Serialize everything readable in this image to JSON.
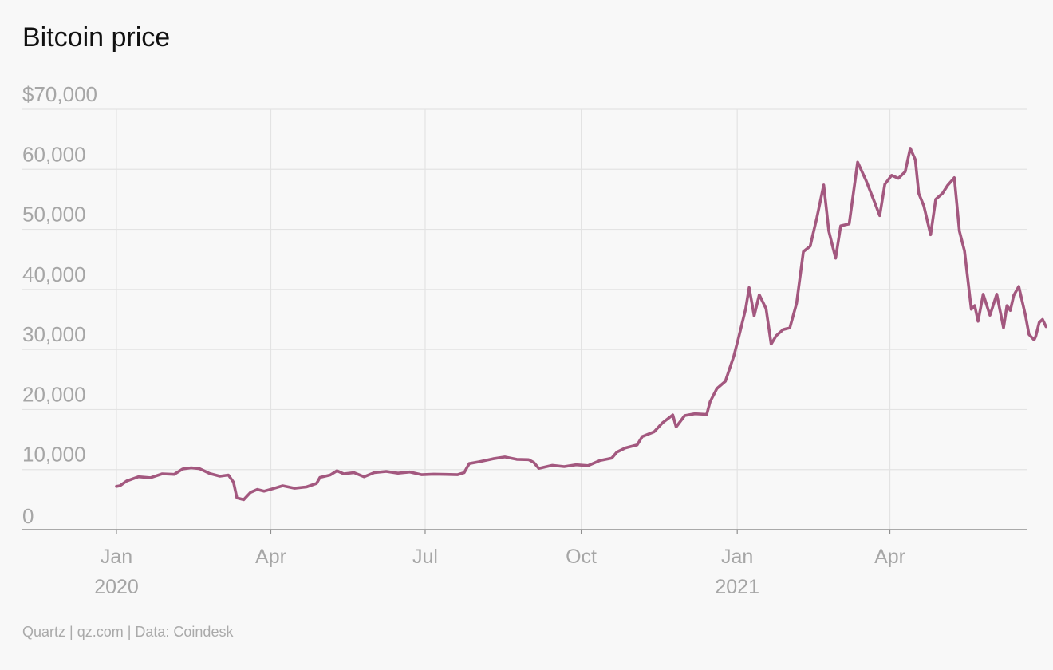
{
  "chart_data": {
    "type": "line",
    "title": "Bitcoin price",
    "source": "Quartz | qz.com | Data: Coindesk",
    "ylim": [
      0,
      70000
    ],
    "xlim": [
      "2019-11-01",
      "2021-06-15"
    ],
    "grid": true,
    "y_ticks": [
      {
        "value": 0,
        "label": "0"
      },
      {
        "value": 10000,
        "label": "10,000"
      },
      {
        "value": 20000,
        "label": "20,000"
      },
      {
        "value": 30000,
        "label": "30,000"
      },
      {
        "value": 40000,
        "label": "40,000"
      },
      {
        "value": 50000,
        "label": "50,000"
      },
      {
        "value": 60000,
        "label": "60,000"
      },
      {
        "value": 70000,
        "label": "$70,000"
      }
    ],
    "x_ticks": [
      {
        "date": "2020-01-01",
        "label": "Jan",
        "sublabel": "2020"
      },
      {
        "date": "2020-04-01",
        "label": "Apr",
        "sublabel": ""
      },
      {
        "date": "2020-07-01",
        "label": "Jul",
        "sublabel": ""
      },
      {
        "date": "2020-10-01",
        "label": "Oct",
        "sublabel": ""
      },
      {
        "date": "2021-01-01",
        "label": "Jan",
        "sublabel": "2021"
      },
      {
        "date": "2021-04-01",
        "label": "Apr",
        "sublabel": ""
      }
    ],
    "colors": {
      "line": "#a3587f",
      "grid": "#e3e3e3",
      "axis": "#8f8f8f",
      "ticks": "#a6a6a6"
    },
    "series": [
      {
        "points": [
          [
            "2020-01-01",
            7200
          ],
          [
            "2020-01-03",
            7300
          ],
          [
            "2020-01-07",
            8100
          ],
          [
            "2020-01-14",
            8800
          ],
          [
            "2020-01-21",
            8650
          ],
          [
            "2020-01-28",
            9300
          ],
          [
            "2020-02-04",
            9200
          ],
          [
            "2020-02-09",
            10100
          ],
          [
            "2020-02-14",
            10300
          ],
          [
            "2020-02-19",
            10150
          ],
          [
            "2020-02-25",
            9350
          ],
          [
            "2020-03-02",
            8900
          ],
          [
            "2020-03-07",
            9100
          ],
          [
            "2020-03-10",
            7900
          ],
          [
            "2020-03-12",
            5300
          ],
          [
            "2020-03-16",
            5000
          ],
          [
            "2020-03-20",
            6200
          ],
          [
            "2020-03-24",
            6700
          ],
          [
            "2020-03-28",
            6400
          ],
          [
            "2020-04-02",
            6800
          ],
          [
            "2020-04-08",
            7300
          ],
          [
            "2020-04-15",
            6900
          ],
          [
            "2020-04-22",
            7100
          ],
          [
            "2020-04-28",
            7700
          ],
          [
            "2020-04-30",
            8700
          ],
          [
            "2020-05-06",
            9100
          ],
          [
            "2020-05-10",
            9800
          ],
          [
            "2020-05-14",
            9300
          ],
          [
            "2020-05-20",
            9500
          ],
          [
            "2020-05-26",
            8800
          ],
          [
            "2020-06-01",
            9500
          ],
          [
            "2020-06-08",
            9700
          ],
          [
            "2020-06-15",
            9400
          ],
          [
            "2020-06-22",
            9600
          ],
          [
            "2020-06-29",
            9150
          ],
          [
            "2020-07-06",
            9250
          ],
          [
            "2020-07-13",
            9200
          ],
          [
            "2020-07-20",
            9150
          ],
          [
            "2020-07-24",
            9500
          ],
          [
            "2020-07-27",
            11000
          ],
          [
            "2020-08-02",
            11300
          ],
          [
            "2020-08-10",
            11800
          ],
          [
            "2020-08-17",
            12100
          ],
          [
            "2020-08-24",
            11700
          ],
          [
            "2020-08-31",
            11650
          ],
          [
            "2020-09-03",
            11200
          ],
          [
            "2020-09-06",
            10200
          ],
          [
            "2020-09-14",
            10700
          ],
          [
            "2020-09-21",
            10500
          ],
          [
            "2020-09-28",
            10800
          ],
          [
            "2020-10-05",
            10650
          ],
          [
            "2020-10-12",
            11500
          ],
          [
            "2020-10-19",
            11900
          ],
          [
            "2020-10-22",
            12900
          ],
          [
            "2020-10-27",
            13600
          ],
          [
            "2020-11-03",
            14100
          ],
          [
            "2020-11-06",
            15500
          ],
          [
            "2020-11-13",
            16300
          ],
          [
            "2020-11-18",
            17800
          ],
          [
            "2020-11-24",
            19100
          ],
          [
            "2020-11-26",
            17100
          ],
          [
            "2020-12-01",
            19000
          ],
          [
            "2020-12-07",
            19300
          ],
          [
            "2020-12-14",
            19200
          ],
          [
            "2020-12-16",
            21300
          ],
          [
            "2020-12-20",
            23500
          ],
          [
            "2020-12-25",
            24700
          ],
          [
            "2020-12-30",
            28900
          ],
          [
            "2021-01-02",
            32200
          ],
          [
            "2021-01-06",
            36800
          ],
          [
            "2021-01-08",
            40300
          ],
          [
            "2021-01-11",
            35600
          ],
          [
            "2021-01-14",
            39100
          ],
          [
            "2021-01-18",
            36800
          ],
          [
            "2021-01-21",
            30900
          ],
          [
            "2021-01-24",
            32300
          ],
          [
            "2021-01-28",
            33300
          ],
          [
            "2021-02-01",
            33600
          ],
          [
            "2021-02-05",
            37700
          ],
          [
            "2021-02-09",
            46300
          ],
          [
            "2021-02-13",
            47200
          ],
          [
            "2021-02-17",
            52000
          ],
          [
            "2021-02-21",
            57400
          ],
          [
            "2021-02-24",
            49700
          ],
          [
            "2021-02-28",
            45200
          ],
          [
            "2021-03-03",
            50600
          ],
          [
            "2021-03-08",
            50900
          ],
          [
            "2021-03-13",
            61200
          ],
          [
            "2021-03-18",
            58100
          ],
          [
            "2021-03-23",
            54500
          ],
          [
            "2021-03-26",
            52300
          ],
          [
            "2021-03-29",
            57500
          ],
          [
            "2021-04-02",
            59000
          ],
          [
            "2021-04-06",
            58500
          ],
          [
            "2021-04-10",
            59600
          ],
          [
            "2021-04-13",
            63500
          ],
          [
            "2021-04-16",
            61600
          ],
          [
            "2021-04-18",
            56000
          ],
          [
            "2021-04-21",
            53900
          ],
          [
            "2021-04-25",
            49100
          ],
          [
            "2021-04-28",
            55000
          ],
          [
            "2021-05-02",
            56000
          ],
          [
            "2021-05-05",
            57300
          ],
          [
            "2021-05-09",
            58600
          ],
          [
            "2021-05-12",
            49700
          ],
          [
            "2021-05-15",
            46400
          ],
          [
            "2021-05-19",
            36700
          ],
          [
            "2021-05-21",
            37300
          ],
          [
            "2021-05-23",
            34700
          ],
          [
            "2021-05-26",
            39200
          ],
          [
            "2021-05-30",
            35700
          ],
          [
            "2021-06-03",
            39200
          ],
          [
            "2021-06-07",
            33600
          ],
          [
            "2021-06-09",
            37300
          ],
          [
            "2021-06-11",
            36500
          ],
          [
            "2021-06-13",
            39000
          ],
          [
            "2021-06-16",
            40500
          ],
          [
            "2021-06-20",
            35600
          ],
          [
            "2021-06-22",
            32500
          ],
          [
            "2021-06-25",
            31600
          ],
          [
            "2021-06-26",
            32200
          ],
          [
            "2021-06-28",
            34500
          ],
          [
            "2021-06-30",
            35000
          ],
          [
            "2021-07-02",
            33800
          ]
        ]
      }
    ]
  }
}
